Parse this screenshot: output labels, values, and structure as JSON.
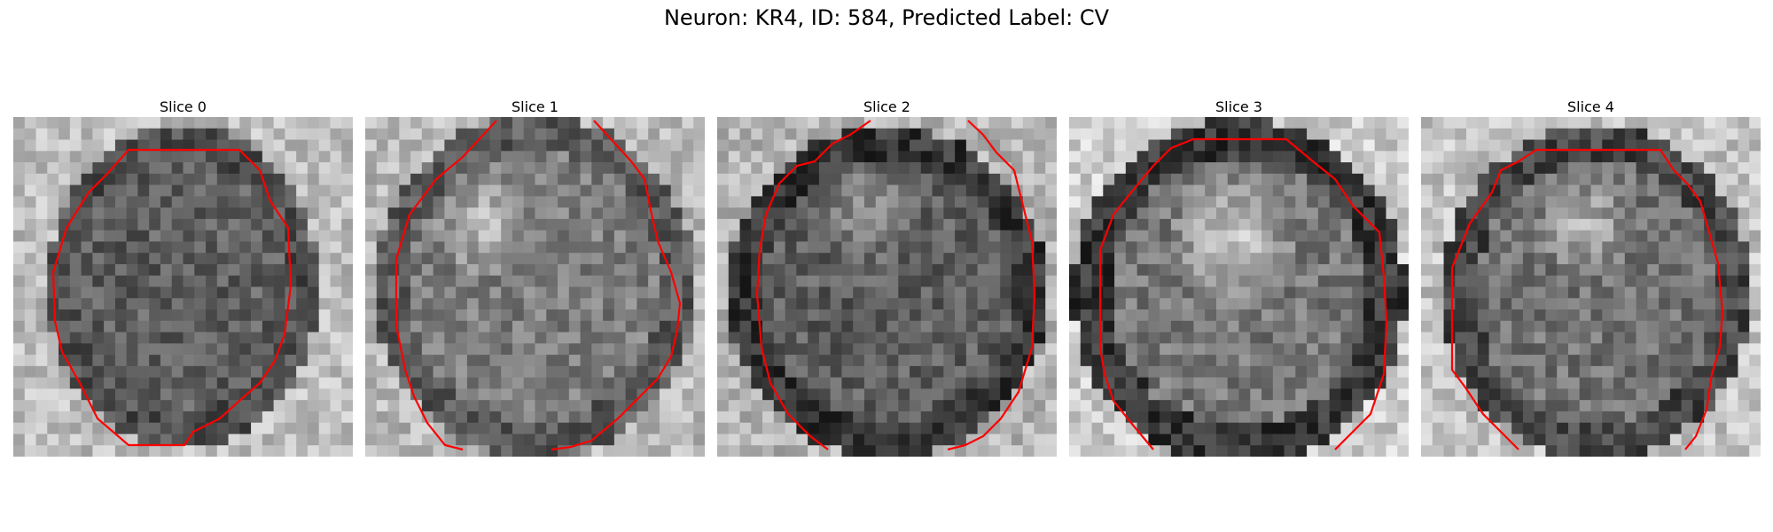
{
  "figure": {
    "title": "Neuron: KR4, ID: 584, Predicted Label: CV"
  },
  "panels": [
    {
      "title": "Slice 0"
    },
    {
      "title": "Slice 1"
    },
    {
      "title": "Slice 2"
    },
    {
      "title": "Slice 3"
    },
    {
      "title": "Slice 4"
    }
  ],
  "colors": {
    "contour": "#ff0000",
    "background": "#ffffff"
  }
}
